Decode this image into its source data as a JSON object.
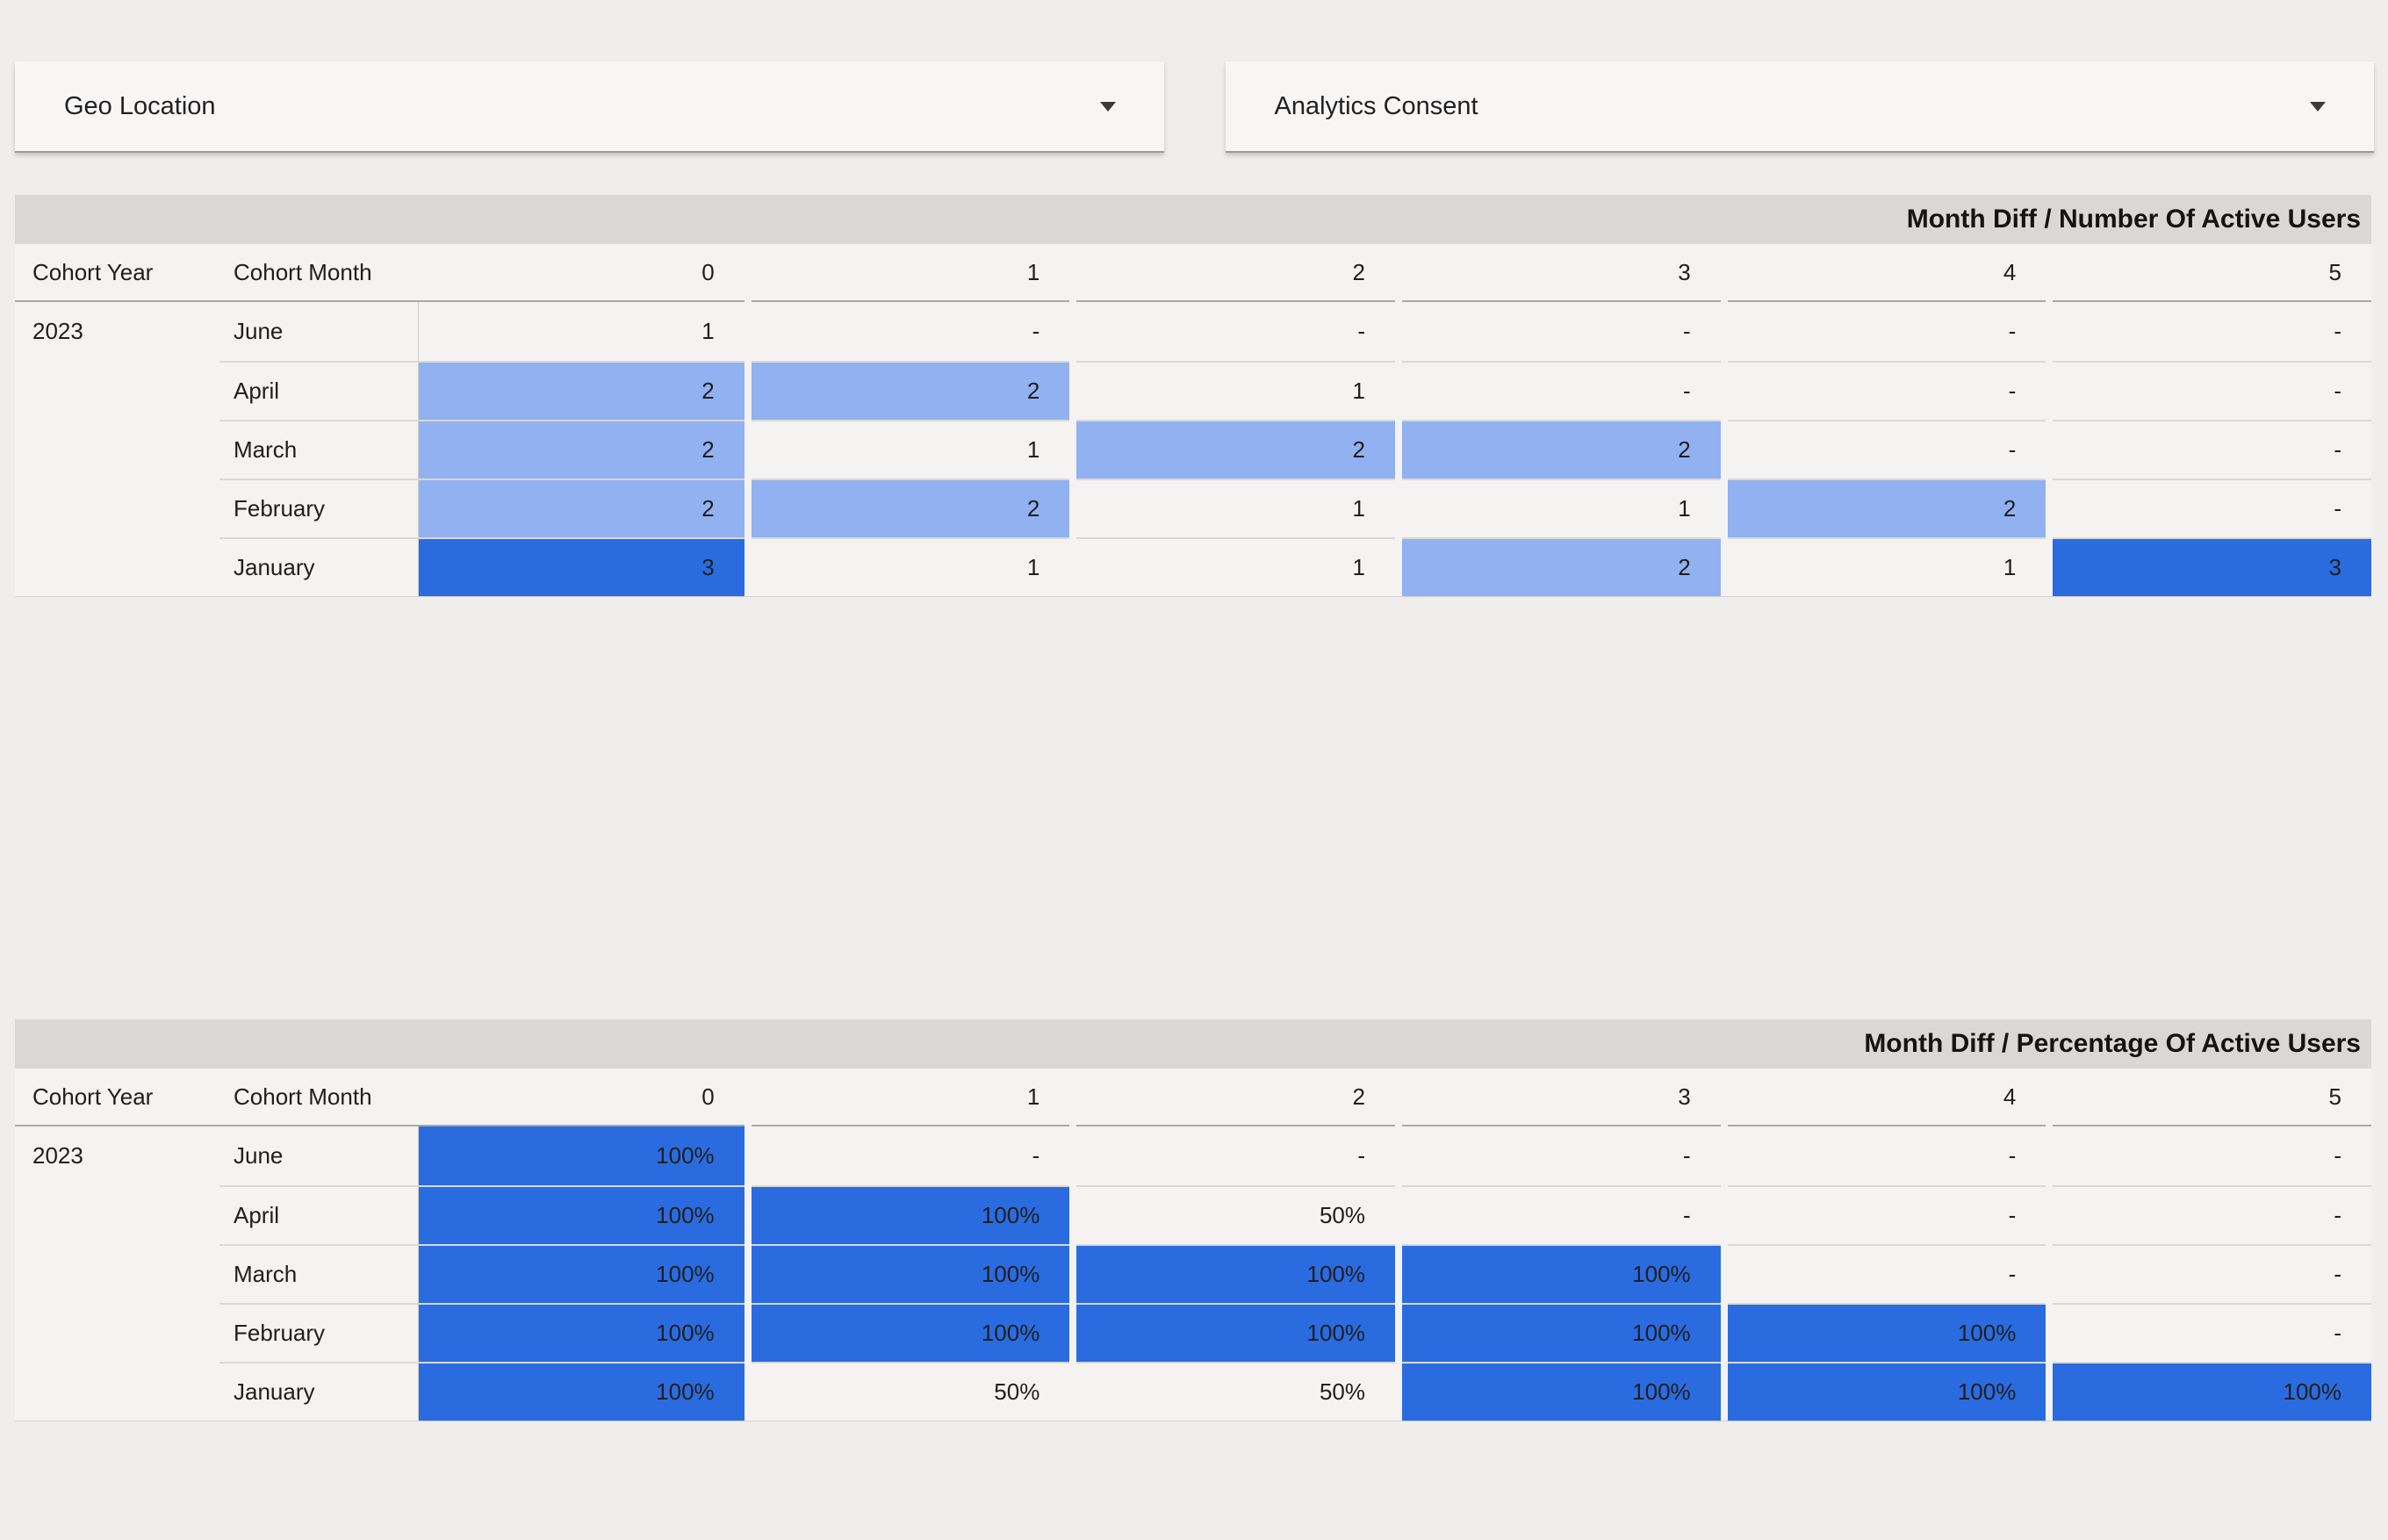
{
  "filters": [
    {
      "label": "Geo Location"
    },
    {
      "label": "Analytics Consent"
    }
  ],
  "tables": [
    {
      "title": "Month Diff / Number Of Active Users",
      "columns": [
        "Cohort Year",
        "Cohort Month",
        "0",
        "1",
        "2",
        "3",
        "4",
        "5"
      ],
      "cohort_year": "2023",
      "rows": [
        {
          "month": "June",
          "values": [
            "1",
            "-",
            "-",
            "-",
            "-",
            "-"
          ],
          "tones": [
            1,
            0,
            0,
            0,
            0,
            0
          ]
        },
        {
          "month": "April",
          "values": [
            "2",
            "2",
            "1",
            "-",
            "-",
            "-"
          ],
          "tones": [
            2,
            2,
            1,
            0,
            0,
            0
          ]
        },
        {
          "month": "March",
          "values": [
            "2",
            "1",
            "2",
            "2",
            "-",
            "-"
          ],
          "tones": [
            2,
            1,
            2,
            2,
            0,
            0
          ]
        },
        {
          "month": "February",
          "values": [
            "2",
            "2",
            "1",
            "1",
            "2",
            "-"
          ],
          "tones": [
            2,
            2,
            1,
            1,
            2,
            0
          ]
        },
        {
          "month": "January",
          "values": [
            "3",
            "1",
            "1",
            "2",
            "1",
            "3"
          ],
          "tones": [
            3,
            1,
            1,
            2,
            1,
            3
          ]
        }
      ]
    },
    {
      "title": "Month Diff / Percentage Of Active Users",
      "columns": [
        "Cohort Year",
        "Cohort Month",
        "0",
        "1",
        "2",
        "3",
        "4",
        "5"
      ],
      "cohort_year": "2023",
      "rows": [
        {
          "month": "June",
          "values": [
            "100%",
            "-",
            "-",
            "-",
            "-",
            "-"
          ],
          "tones": [
            3,
            0,
            0,
            0,
            0,
            0
          ]
        },
        {
          "month": "April",
          "values": [
            "100%",
            "100%",
            "50%",
            "-",
            "-",
            "-"
          ],
          "tones": [
            3,
            3,
            1,
            0,
            0,
            0
          ]
        },
        {
          "month": "March",
          "values": [
            "100%",
            "100%",
            "100%",
            "100%",
            "-",
            "-"
          ],
          "tones": [
            3,
            3,
            3,
            3,
            0,
            0
          ]
        },
        {
          "month": "February",
          "values": [
            "100%",
            "100%",
            "100%",
            "100%",
            "100%",
            "-"
          ],
          "tones": [
            3,
            3,
            3,
            3,
            3,
            0
          ]
        },
        {
          "month": "January",
          "values": [
            "100%",
            "50%",
            "50%",
            "100%",
            "100%",
            "100%"
          ],
          "tones": [
            3,
            1,
            1,
            3,
            3,
            3
          ]
        }
      ]
    }
  ],
  "colors": {
    "page_bg": "#efeeec",
    "table_bg": "#f4f3f1",
    "title_bar_bg": "#d9d8d6",
    "heat_mid": "#92b1f0",
    "heat_high": "#2a6ce0",
    "text": "#1e1e1e",
    "separator": "#d9d8d6",
    "divider": "#cfcfcd",
    "header_underline": "#a9a9a7",
    "control_bg": "#f7f6f4",
    "control_border": "#9b9b99"
  }
}
